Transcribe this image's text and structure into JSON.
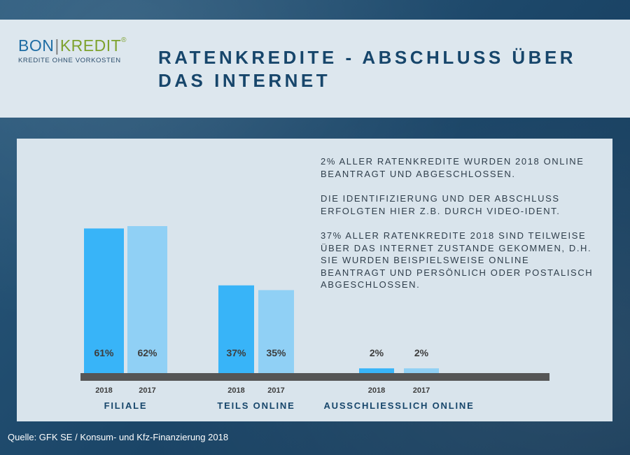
{
  "logo": {
    "bon": "BON",
    "kredit": "KREDIT",
    "registered": "®",
    "tagline": "KREDITE OHNE VORKOSTEN"
  },
  "title": "Ratenkredite - Abschluss über das Internet",
  "info_paragraphs": [
    "2% aller Ratenkredite wurden 2018 online beantragt und abgeschlossen.",
    "Die Identifizierung und der Abschluss erfolgten hier z.B. durch Video-Ident.",
    "37% aller Ratenkredite 2018 sind teilweise über das Internet zustande gekommen, d.h. sie wurden beispielsweise online beantragt und persönlich oder postalisch abgeschlossen."
  ],
  "source": "Quelle: GFK SE / Konsum- und Kfz-Finanzierung 2018",
  "colors": {
    "bar_2018": "#38b4f8",
    "bar_2017": "#90d0f5",
    "axis": "#555555",
    "group_label": "#17466b",
    "value_label": "#3d3d3d",
    "year_label": "#3d3d3d"
  },
  "chart_data": {
    "type": "bar",
    "categories": [
      "FILIALE",
      "TEILS ONLINE",
      "AUSSCHLIESSLICH ONLINE"
    ],
    "series": [
      {
        "year_label": "2018",
        "values": [
          61,
          37,
          2
        ],
        "value_labels": [
          "61%",
          "37%",
          "2%"
        ]
      },
      {
        "year_label": "2017",
        "values": [
          62,
          35,
          2
        ],
        "value_labels": [
          "62%",
          "35%",
          "2%"
        ]
      }
    ],
    "unit": "%",
    "ylim": [
      0,
      100
    ],
    "grid": false,
    "legend": "none"
  }
}
